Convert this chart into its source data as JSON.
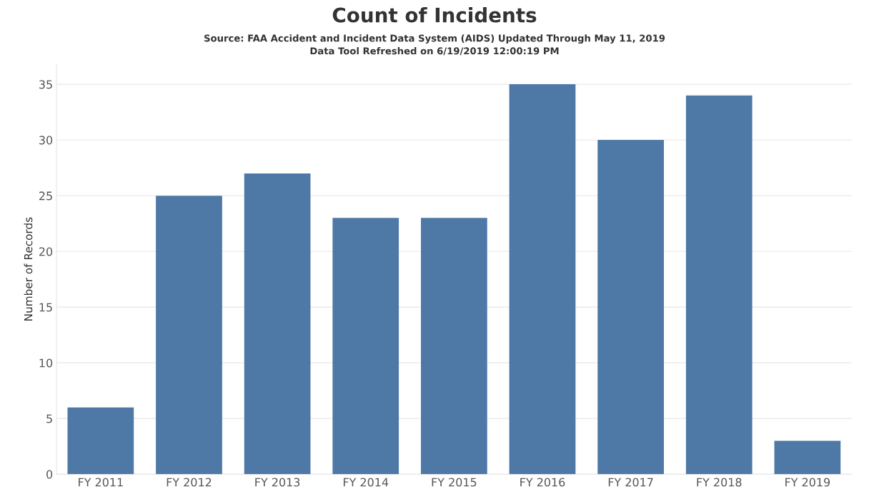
{
  "chart_data": {
    "type": "bar",
    "title": "Count of Incidents",
    "subtitle": "Source: FAA Accident and Incident Data System (AIDS) Updated Through May 11, 2019\nData Tool Refreshed on 6/19/2019 12:00:19 PM",
    "ylabel": "Number of Records",
    "categories": [
      "FY 2011",
      "FY 2012",
      "FY 2013",
      "FY 2014",
      "FY 2015",
      "FY 2016",
      "FY 2017",
      "FY 2018",
      "FY 2019"
    ],
    "values": [
      6,
      25,
      27,
      23,
      23,
      35,
      30,
      34,
      3
    ],
    "color": "#4e78a5",
    "ylim": [
      0,
      36.8
    ],
    "yticks": [
      0,
      5,
      10,
      15,
      20,
      25,
      30,
      35
    ],
    "grid": "y",
    "legend": false
  }
}
